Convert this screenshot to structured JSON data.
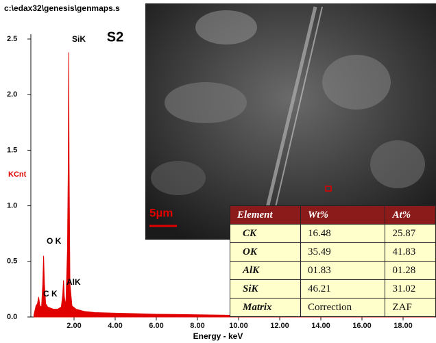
{
  "window_title": "c:\\edax32\\genesis\\genmaps.s",
  "sample_label": "S2",
  "scale_bar": "5µm",
  "chart_data": {
    "type": "area",
    "color": "#e00000",
    "y_label": "KCnt",
    "x_label": "Energy - keV",
    "annotations": [
      "C K",
      "O K",
      "AlK",
      "SiK"
    ],
    "x": [
      0.05,
      0.15,
      0.22,
      0.28,
      0.34,
      0.42,
      0.48,
      0.52,
      0.56,
      0.62,
      0.72,
      0.85,
      1.0,
      1.2,
      1.38,
      1.45,
      1.49,
      1.53,
      1.6,
      1.68,
      1.72,
      1.74,
      1.76,
      1.8,
      1.9,
      2.1,
      2.5,
      3.0,
      4.0,
      5.0,
      6.0,
      8.0,
      10.0,
      12.0,
      14.0,
      16.0,
      18.0,
      19.5
    ],
    "values": [
      0.02,
      0.1,
      0.12,
      0.18,
      0.1,
      0.09,
      0.3,
      0.55,
      0.3,
      0.12,
      0.09,
      0.08,
      0.07,
      0.07,
      0.09,
      0.2,
      0.33,
      0.18,
      0.1,
      0.6,
      1.38,
      2.38,
      1.38,
      0.3,
      0.1,
      0.07,
      0.05,
      0.04,
      0.035,
      0.03,
      0.025,
      0.02,
      0.015,
      0.012,
      0.01,
      0.008,
      0.006,
      0.005
    ],
    "xlim": [
      0,
      19.6
    ],
    "ylim": [
      0,
      2.5
    ],
    "xticks": [
      {
        "value": 2,
        "label": "2.00"
      },
      {
        "value": 4,
        "label": "4.00"
      },
      {
        "value": 6,
        "label": "6.00"
      },
      {
        "value": 8,
        "label": "8.00"
      },
      {
        "value": 10,
        "label": "10.00"
      },
      {
        "value": 12,
        "label": "12.00"
      },
      {
        "value": 14,
        "label": "14.00"
      },
      {
        "value": 16,
        "label": "16.00"
      },
      {
        "value": 18,
        "label": "18.00"
      }
    ],
    "yticks": [
      {
        "value": 0,
        "label": "0.0"
      },
      {
        "value": 0.5,
        "label": "0.5"
      },
      {
        "value": 1,
        "label": "1.0"
      },
      {
        "value": 1.5,
        "label": "1.5"
      },
      {
        "value": 2,
        "label": "2.0"
      },
      {
        "value": 2.5,
        "label": "2.5"
      }
    ]
  },
  "table": {
    "columns": [
      "Element",
      "Wt%",
      "At%"
    ],
    "rows": [
      [
        "CK",
        "16.48",
        "25.87"
      ],
      [
        "OK",
        "35.49",
        "41.83"
      ],
      [
        "AlK",
        "01.83",
        "01.28"
      ],
      [
        "SiK",
        "46.21",
        "31.02"
      ],
      [
        "Matrix",
        "Correction",
        "ZAF"
      ]
    ]
  }
}
